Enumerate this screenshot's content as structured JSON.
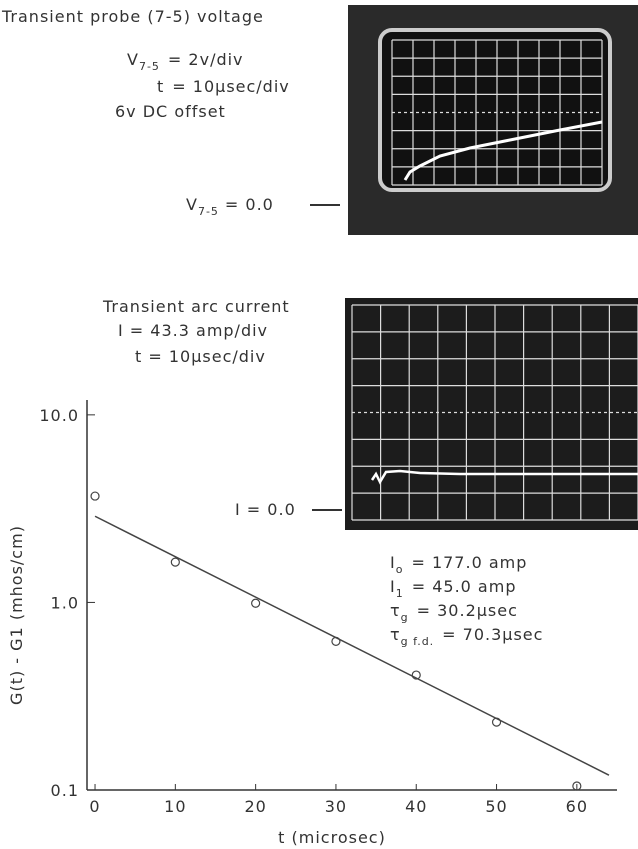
{
  "top_panel": {
    "title": "Transient probe (7-5) voltage",
    "scale_v": {
      "symbol": "V",
      "sub": "7-5",
      "rhs": "= 2v/div"
    },
    "scale_t": {
      "symbol": "t",
      "rhs": "= 10µsec/div"
    },
    "offset": "6v DC offset",
    "zero": {
      "symbol": "V",
      "sub": "7-5",
      "rhs": "= 0.0"
    }
  },
  "bottom_panel": {
    "title": "Transient arc current",
    "scale_i": "I = 43.3 amp/div",
    "scale_t": "t = 10µsec/div",
    "zero": "I = 0.0",
    "params": [
      {
        "symbol": "I",
        "sub": "o",
        "rhs": "= 177.0 amp"
      },
      {
        "symbol": "I",
        "sub": "1",
        "rhs": "= 45.0 amp"
      },
      {
        "symbol": "τ",
        "sub": "g",
        "rhs": "= 30.2µsec"
      },
      {
        "symbol": "τ",
        "sub": "g f.d.",
        "rhs": "= 70.3µsec"
      }
    ]
  },
  "chart_data": {
    "type": "scatter",
    "log_y": true,
    "x_label": "t (microsec)",
    "y_label": "G(t) - G1 (mhos/cm)",
    "x": [
      0,
      10,
      20,
      30,
      40,
      50,
      60
    ],
    "values": [
      3.69,
      1.64,
      0.99,
      0.62,
      0.41,
      0.23,
      0.105
    ],
    "color": "#444",
    "fit_line": {
      "x": [
        0,
        64
      ],
      "values": [
        2.88,
        0.12
      ]
    },
    "xlim": [
      -1,
      65
    ],
    "ylim": [
      0.1,
      12
    ],
    "xticks": [
      0,
      10,
      20,
      30,
      40,
      50,
      60
    ],
    "yticks": [
      0.1,
      {
        "value": 1,
        "label": "1.0"
      },
      {
        "value": 10,
        "label": "10.0"
      }
    ]
  }
}
